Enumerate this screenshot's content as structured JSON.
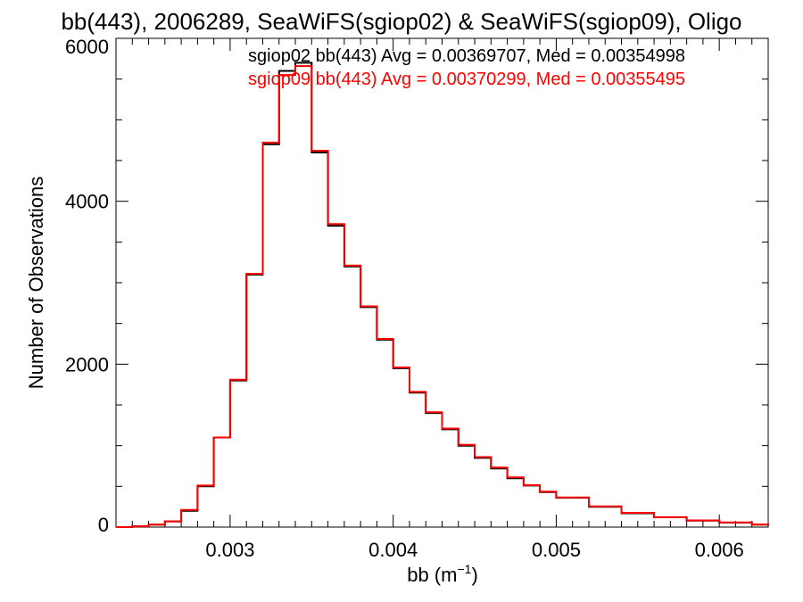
{
  "chart_data": {
    "type": "line",
    "title": "bb(443), 2006289, SeaWiFS(sgiop02) & SeaWiFS(sgiop09), Oligo",
    "xlabel_main": "bb (m",
    "xlabel_sup": "−1",
    "xlabel_close": ")",
    "ylabel": "Number of Observations",
    "xlim": [
      0.0023,
      0.0063
    ],
    "ylim": [
      0,
      6000
    ],
    "x_ticks": [
      0.003,
      0.004,
      0.005,
      0.006
    ],
    "x_tick_labels": [
      "0.003",
      "0.004",
      "0.005",
      "0.006"
    ],
    "y_ticks": [
      0,
      2000,
      4000,
      6000
    ],
    "y_tick_labels": [
      "0",
      "2000",
      "4000",
      "6000"
    ],
    "grid": false,
    "step": true,
    "x": [
      0.0023,
      0.0024,
      0.0025,
      0.0026,
      0.0027,
      0.0028,
      0.0029,
      0.003,
      0.0031,
      0.0032,
      0.0033,
      0.0034,
      0.0035,
      0.0036,
      0.0037,
      0.0038,
      0.0039,
      0.004,
      0.0041,
      0.0042,
      0.0043,
      0.0044,
      0.0045,
      0.0046,
      0.0047,
      0.0048,
      0.0049,
      0.005,
      0.0052,
      0.0054,
      0.0056,
      0.0058,
      0.006,
      0.0062,
      0.0063
    ],
    "series": [
      {
        "name": "sgiop02",
        "color": "#000000",
        "values": [
          0,
          10,
          30,
          70,
          200,
          500,
          1100,
          1800,
          3100,
          4700,
          5600,
          5700,
          4600,
          3700,
          3200,
          2700,
          2300,
          1950,
          1650,
          1400,
          1200,
          1000,
          850,
          720,
          600,
          510,
          430,
          360,
          250,
          170,
          120,
          80,
          55,
          30,
          20
        ]
      },
      {
        "name": "sgiop09",
        "color": "#ff0000",
        "values": [
          0,
          10,
          30,
          70,
          210,
          510,
          1100,
          1810,
          3110,
          4720,
          5550,
          5660,
          4620,
          3720,
          3210,
          2710,
          2310,
          1960,
          1660,
          1410,
          1210,
          1010,
          860,
          730,
          610,
          515,
          435,
          365,
          255,
          175,
          122,
          82,
          57,
          32,
          21
        ]
      }
    ],
    "annotations": [
      {
        "text": "sgiop02 bb(443) Avg = 0.00369707, Med = 0.00354998",
        "color": "#000000"
      },
      {
        "text": "sgiop09 bb(443) Avg = 0.00370299, Med = 0.00355495",
        "color": "#ff0000"
      }
    ]
  }
}
